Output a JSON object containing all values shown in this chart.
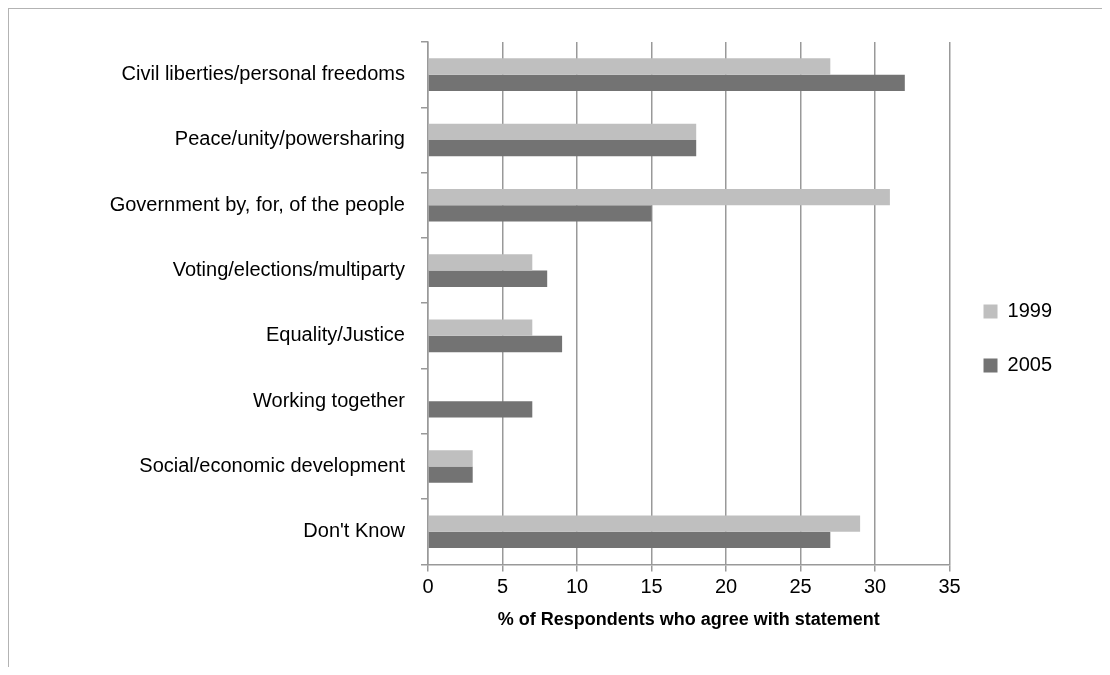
{
  "chart_data": {
    "type": "bar",
    "orientation": "horizontal",
    "categories": [
      "Civil liberties/personal freedoms",
      "Peace/unity/powersharing",
      "Government by, for, of the people",
      "Voting/elections/multiparty",
      "Equality/Justice",
      "Working together",
      "Social/economic development",
      "Don't Know"
    ],
    "series": [
      {
        "name": "1999",
        "color": "#bfbfbf",
        "values": [
          27,
          18,
          31,
          7,
          7,
          null,
          3,
          29
        ]
      },
      {
        "name": "2005",
        "color": "#737373",
        "values": [
          32,
          18,
          15,
          8,
          9,
          7,
          3,
          27
        ]
      }
    ],
    "xlabel": "% of Respondents who agree with statement",
    "xlim": [
      0,
      35
    ],
    "xticks": [
      0,
      5,
      10,
      15,
      20,
      25,
      30,
      35
    ],
    "grid": "x",
    "legend": "right"
  }
}
